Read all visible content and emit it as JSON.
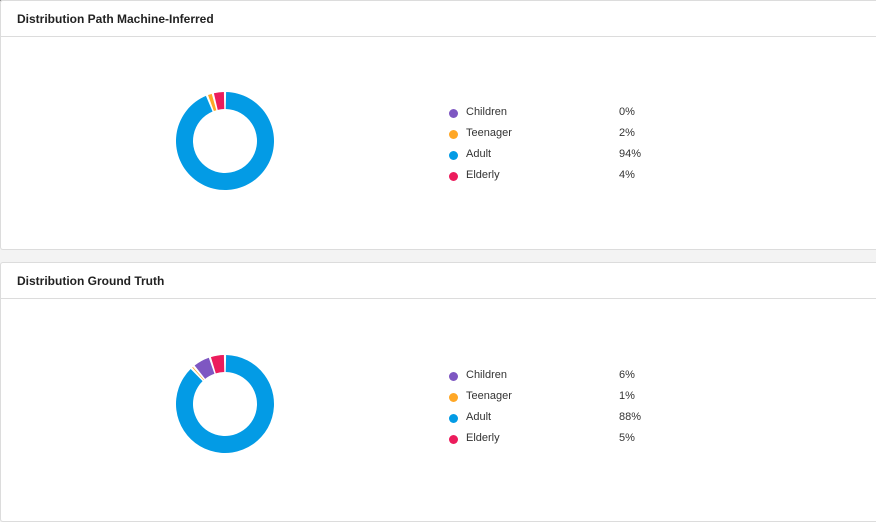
{
  "colors": {
    "children": "#7e57c2",
    "teenager": "#ffa726",
    "adult": "#039be5",
    "elderly": "#ec1c5c"
  },
  "cards": [
    {
      "title": "Distribution Path Machine-Inferred",
      "legend": [
        {
          "label": "Children",
          "value": "0%"
        },
        {
          "label": "Teenager",
          "value": "2%"
        },
        {
          "label": "Adult",
          "value": "94%"
        },
        {
          "label": "Elderly",
          "value": "4%"
        }
      ]
    },
    {
      "title": "Distribution Ground Truth",
      "legend": [
        {
          "label": "Children",
          "value": "6%"
        },
        {
          "label": "Teenager",
          "value": "1%"
        },
        {
          "label": "Adult",
          "value": "88%"
        },
        {
          "label": "Elderly",
          "value": "5%"
        }
      ]
    }
  ],
  "chart_data": [
    {
      "type": "pie",
      "title": "Distribution Path Machine-Inferred",
      "categories": [
        "Children",
        "Teenager",
        "Adult",
        "Elderly"
      ],
      "values": [
        0,
        2,
        94,
        4
      ],
      "colors": [
        "#7e57c2",
        "#ffa726",
        "#039be5",
        "#ec1c5c"
      ],
      "legend_placement": "right"
    },
    {
      "type": "pie",
      "title": "Distribution Ground Truth",
      "categories": [
        "Children",
        "Teenager",
        "Adult",
        "Elderly"
      ],
      "values": [
        6,
        1,
        88,
        5
      ],
      "colors": [
        "#7e57c2",
        "#ffa726",
        "#039be5",
        "#ec1c5c"
      ],
      "legend_placement": "right"
    }
  ]
}
